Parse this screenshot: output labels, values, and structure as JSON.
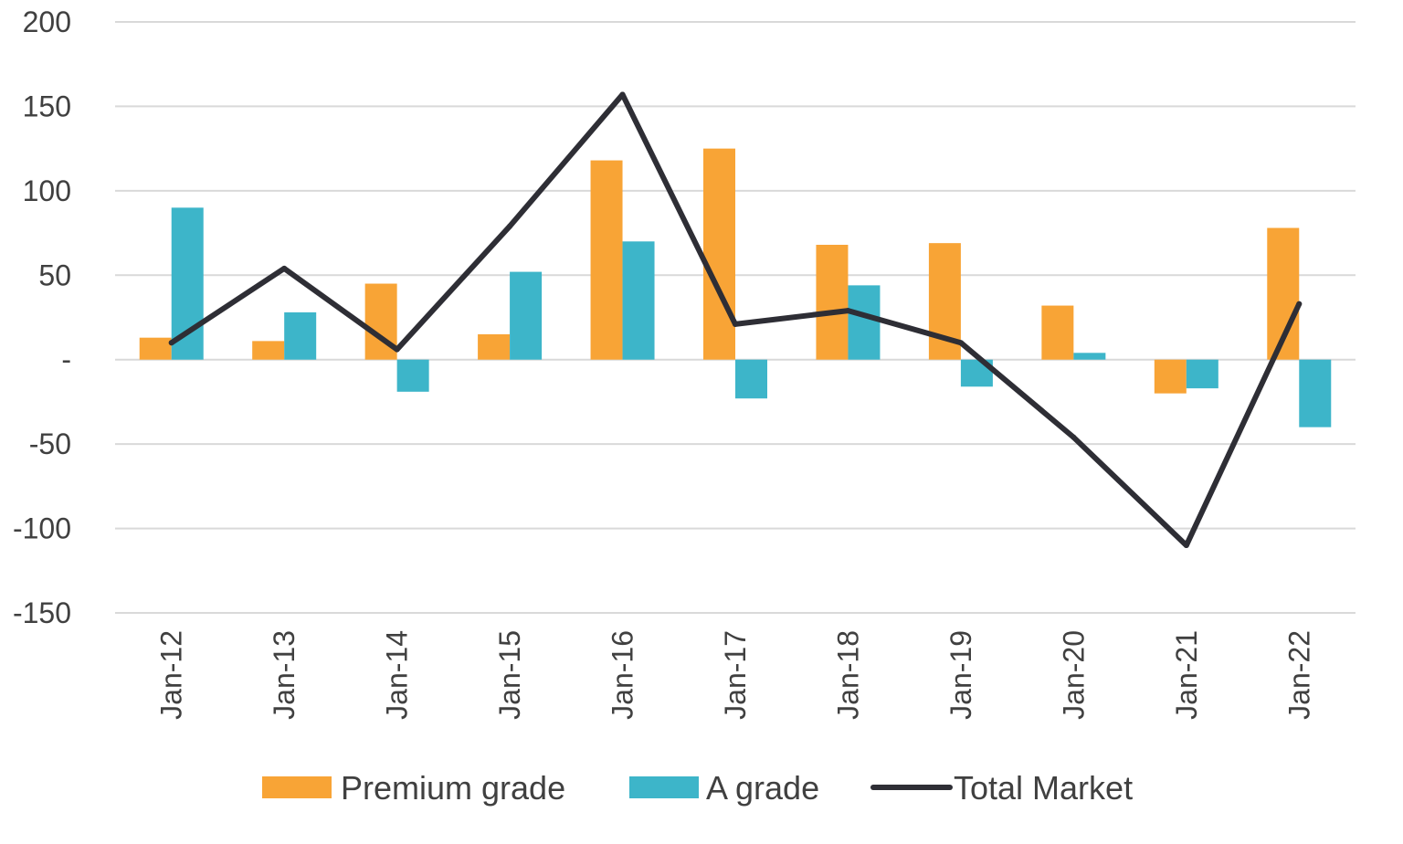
{
  "chart_data": {
    "type": "bar",
    "categories": [
      "Jan-12",
      "Jan-13",
      "Jan-14",
      "Jan-15",
      "Jan-16",
      "Jan-17",
      "Jan-18",
      "Jan-19",
      "Jan-20",
      "Jan-21",
      "Jan-22"
    ],
    "series": [
      {
        "name": "Premium grade",
        "type": "bar",
        "color": "#F8A436",
        "values": [
          13,
          11,
          45,
          15,
          118,
          125,
          68,
          69,
          32,
          -20,
          78
        ]
      },
      {
        "name": "A grade",
        "type": "bar",
        "color": "#3DB5C9",
        "values": [
          90,
          28,
          -19,
          52,
          70,
          -23,
          44,
          -16,
          4,
          -17,
          -40
        ]
      },
      {
        "name": "Total Market",
        "type": "line",
        "color": "#2E2E35",
        "values": [
          10,
          54,
          6,
          79,
          157,
          21,
          29,
          10,
          -46,
          -110,
          33
        ]
      }
    ],
    "title": "",
    "xlabel": "",
    "ylabel": "",
    "ylim": [
      -150,
      200
    ],
    "yticks": [
      200,
      150,
      100,
      50,
      0,
      -50,
      -100,
      -150
    ],
    "ytick_labels": [
      "200",
      "150",
      "100",
      "50",
      "-",
      "-50",
      "-100",
      "-150"
    ],
    "grid": true,
    "legend_position": "bottom"
  }
}
